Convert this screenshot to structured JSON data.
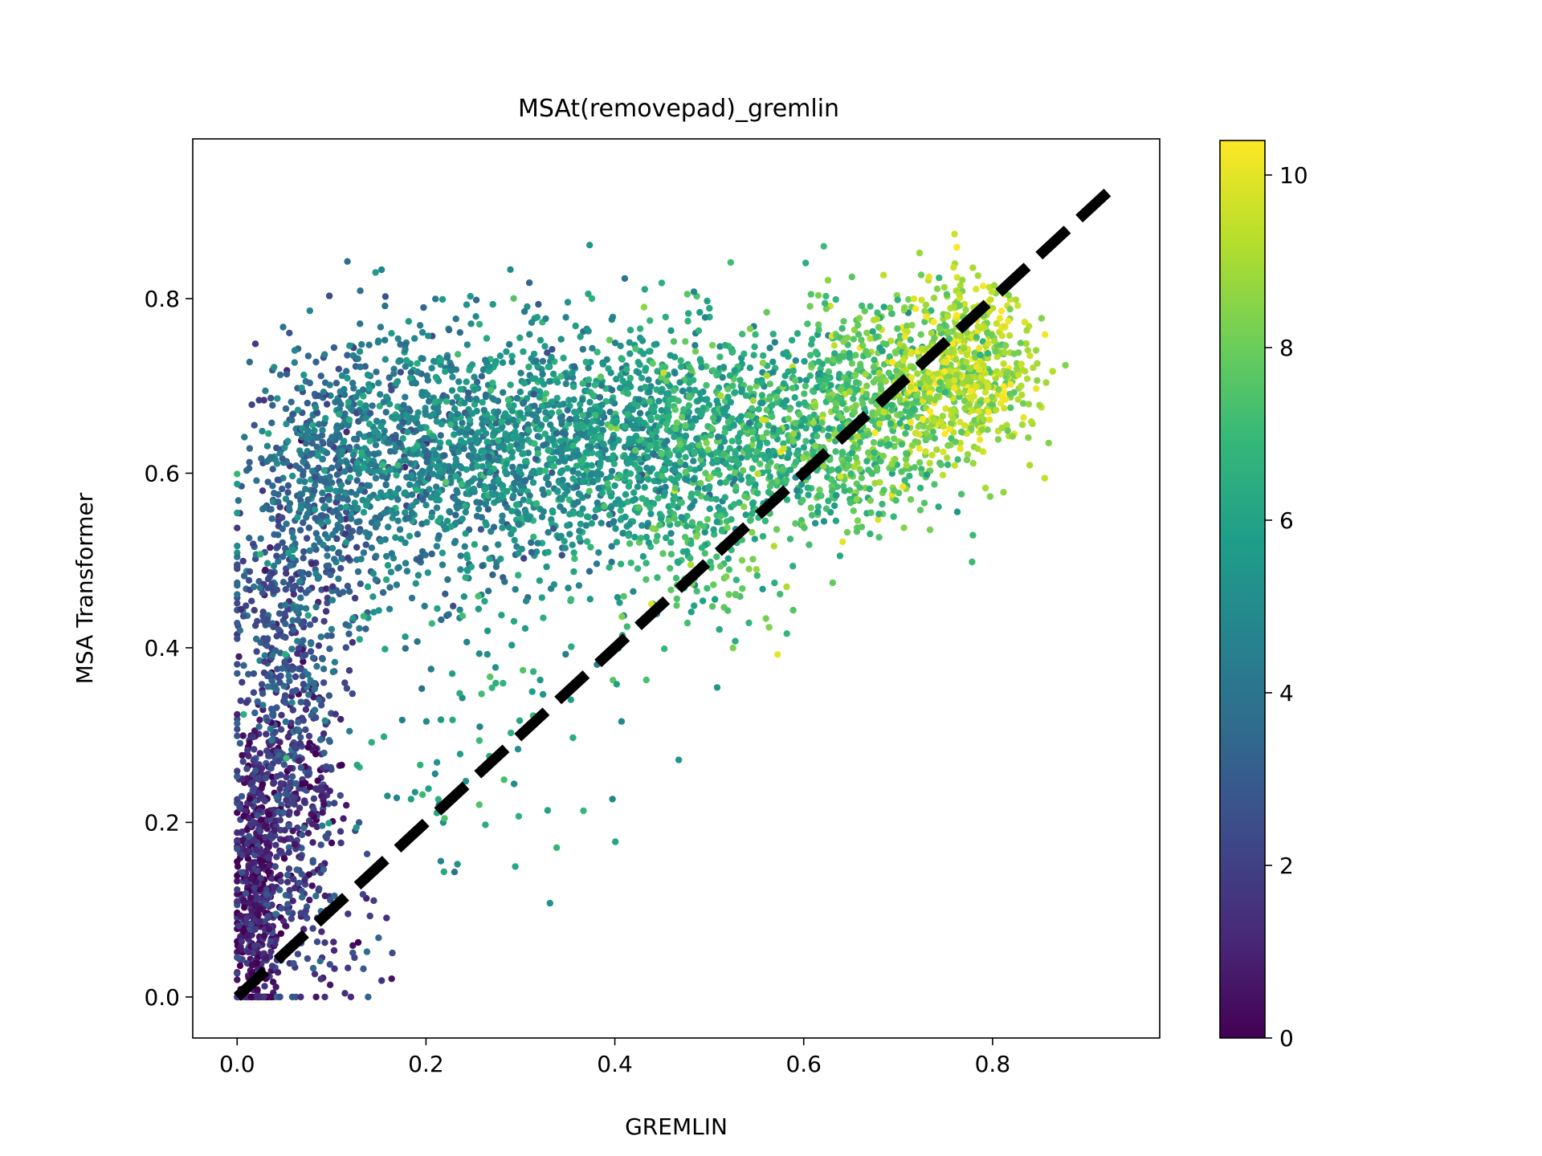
{
  "chart_data": {
    "type": "scatter",
    "title": "MSAt(removepad)_gremlin",
    "xlabel": "GREMLIN",
    "ylabel": "MSA Transformer",
    "xlim": [
      -0.047,
      0.977
    ],
    "ylim": [
      -0.047,
      0.983
    ],
    "xticks": [
      0.0,
      0.2,
      0.4,
      0.6,
      0.8
    ],
    "xtick_labels": [
      "0.0",
      "0.2",
      "0.4",
      "0.6",
      "0.8"
    ],
    "yticks": [
      0.0,
      0.2,
      0.4,
      0.6,
      0.8
    ],
    "ytick_labels": [
      "0.0",
      "0.2",
      "0.4",
      "0.6",
      "0.8"
    ],
    "grid": false,
    "colormap": "viridis",
    "colorbar": {
      "range": [
        0,
        10.4
      ],
      "ticks": [
        0,
        2,
        4,
        6,
        8,
        10
      ],
      "tick_labels": [
        "0",
        "2",
        "4",
        "6",
        "8",
        "10"
      ]
    },
    "reference_line": {
      "style": "dashed",
      "color": "#000000",
      "from": [
        0,
        0
      ],
      "to": [
        0.93,
        0.93
      ]
    },
    "point_clusters": [
      {
        "x_mean": 0.02,
        "x_sd": 0.012,
        "y_mean": 0.12,
        "y_sd": 0.09,
        "color_value": 0.9,
        "count": 500
      },
      {
        "x_mean": 0.06,
        "x_sd": 0.03,
        "y_mean": 0.22,
        "y_sd": 0.1,
        "color_value": 1.6,
        "count": 380
      },
      {
        "x_mean": 0.05,
        "x_sd": 0.03,
        "y_mean": 0.43,
        "y_sd": 0.1,
        "color_value": 2.8,
        "count": 380
      },
      {
        "x_mean": 0.1,
        "x_sd": 0.04,
        "y_mean": 0.6,
        "y_sd": 0.08,
        "color_value": 3.6,
        "count": 450
      },
      {
        "x_mean": 0.2,
        "x_sd": 0.06,
        "y_mean": 0.62,
        "y_sd": 0.07,
        "color_value": 4.6,
        "count": 750
      },
      {
        "x_mean": 0.33,
        "x_sd": 0.06,
        "y_mean": 0.63,
        "y_sd": 0.07,
        "color_value": 5.3,
        "count": 750
      },
      {
        "x_mean": 0.44,
        "x_sd": 0.05,
        "y_mean": 0.64,
        "y_sd": 0.06,
        "color_value": 5.9,
        "count": 550
      },
      {
        "x_mean": 0.56,
        "x_sd": 0.05,
        "y_mean": 0.65,
        "y_sd": 0.06,
        "color_value": 6.7,
        "count": 550
      },
      {
        "x_mean": 0.67,
        "x_sd": 0.04,
        "y_mean": 0.67,
        "y_sd": 0.06,
        "color_value": 7.8,
        "count": 550
      },
      {
        "x_mean": 0.77,
        "x_sd": 0.035,
        "y_mean": 0.72,
        "y_sd": 0.05,
        "color_value": 9.0,
        "count": 650
      },
      {
        "x_mean": 0.5,
        "x_sd": 0.05,
        "y_mean": 0.5,
        "y_sd": 0.05,
        "color_value": 7.2,
        "count": 150
      },
      {
        "x_mean": 0.25,
        "x_sd": 0.08,
        "y_mean": 0.32,
        "y_sd": 0.09,
        "color_value": 5.8,
        "count": 100
      },
      {
        "x_mean": 0.1,
        "x_sd": 0.04,
        "y_mean": 0.08,
        "y_sd": 0.05,
        "color_value": 2.3,
        "count": 60
      }
    ]
  }
}
